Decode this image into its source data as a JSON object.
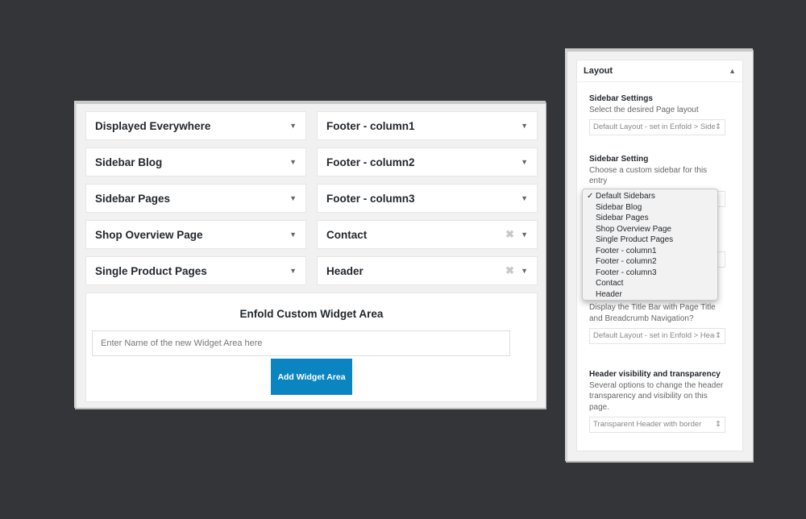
{
  "widgets": {
    "left": [
      {
        "label": "Displayed Everywhere"
      },
      {
        "label": "Sidebar Blog"
      },
      {
        "label": "Sidebar Pages"
      },
      {
        "label": "Shop Overview Page"
      },
      {
        "label": "Single Product Pages"
      }
    ],
    "right": [
      {
        "label": "Footer - column1",
        "removable": false
      },
      {
        "label": "Footer - column2",
        "removable": false
      },
      {
        "label": "Footer - column3",
        "removable": false
      },
      {
        "label": "Contact",
        "removable": true
      },
      {
        "label": "Header",
        "removable": true
      }
    ]
  },
  "custom_area": {
    "title": "Enfold Custom Widget Area",
    "placeholder": "Enter Name of the new Widget Area here",
    "button": "Add Widget Area",
    "button_color": "#0a85c2"
  },
  "layout": {
    "title": "Layout",
    "sidebar_settings": {
      "label": "Sidebar Settings",
      "desc": "Select the desired Page layout",
      "value": "Default Layout - set in Enfold > Sidebar"
    },
    "sidebar_setting": {
      "label": "Sidebar Setting",
      "desc": "Choose a custom sidebar for this entry"
    },
    "title_bar": {
      "desc": "Display the Title Bar with Page Title and Breadcrumb Navigation?",
      "value": "Default Layout - set in Enfold > Header"
    },
    "header_visibility": {
      "label": "Header visibility and transparency",
      "desc": "Several options to change the header transparency and visibility on this page.",
      "value": "Transparent Header with border"
    },
    "dropdown": {
      "selected": "Default Sidebars",
      "options": [
        "Default Sidebars",
        "Sidebar Blog",
        "Sidebar Pages",
        "Shop Overview Page",
        "Single Product Pages",
        "Footer - column1",
        "Footer - column2",
        "Footer - column3",
        "Contact",
        "Header"
      ]
    }
  }
}
